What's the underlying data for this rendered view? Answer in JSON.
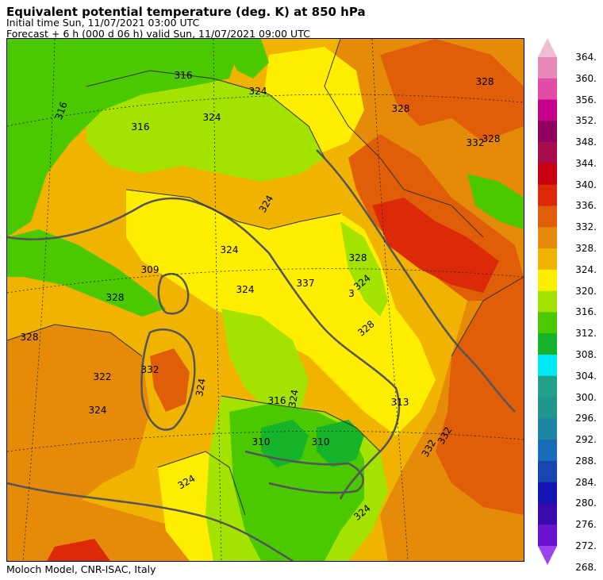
{
  "header": {
    "title": "Equivalent potential temperature (deg. K) at 850 hPa",
    "initial_time": "Initial time  Sun, 11/07/2021  03:00 UTC",
    "forecast": "Forecast  +   6 h  (000 d 06 h)  valid Sun, 11/07/2021 09:00 UTC"
  },
  "footer": {
    "credit": "Moloch Model, CNR-ISAC, Italy"
  },
  "colorbar": {
    "labels": [
      "364.",
      "360.",
      "356.",
      "352.",
      "348.",
      "344.",
      "340.",
      "336.",
      "332.",
      "328.",
      "324.",
      "320.",
      "316.",
      "312.",
      "308.",
      "304.",
      "300.",
      "296.",
      "292.",
      "288.",
      "284.",
      "280.",
      "276.",
      "272.",
      "268."
    ],
    "colors": [
      "#f0bcd2",
      "#e888b8",
      "#e04ca6",
      "#c2008c",
      "#90005e",
      "#a80c4a",
      "#c80012",
      "#dc2a08",
      "#e05e08",
      "#e68a0a",
      "#f0b400",
      "#ffee00",
      "#a4e200",
      "#4ac800",
      "#16b42a",
      "#00e8f8",
      "#22a08c",
      "#1e968e",
      "#1c84a4",
      "#186cb8",
      "#1846b0",
      "#1414b4",
      "#3a0aa8",
      "#6a14d0",
      "#9a44f0"
    ]
  },
  "map": {
    "contour_labels": [
      "316",
      "316",
      "316",
      "316",
      "324",
      "324",
      "324",
      "324",
      "324",
      "324",
      "324",
      "324",
      "324",
      "324",
      "324",
      "328",
      "328",
      "328",
      "328",
      "328",
      "328",
      "328",
      "309",
      "322",
      "332",
      "332",
      "332",
      "332",
      "310",
      "310",
      "337",
      "3",
      "313"
    ]
  }
}
